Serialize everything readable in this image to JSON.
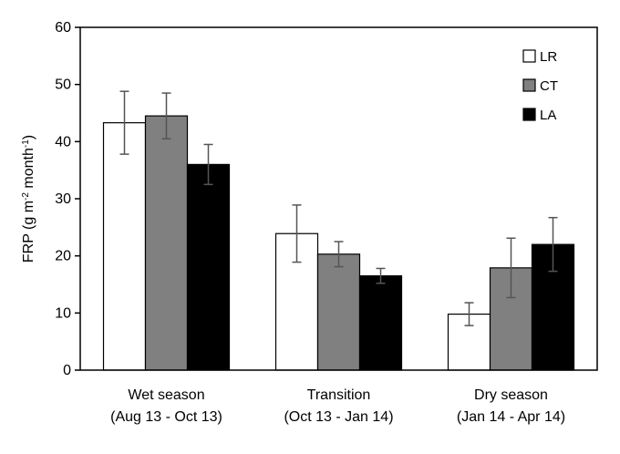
{
  "chart_data": {
    "type": "bar",
    "categories": [
      [
        "Wet season",
        "(Aug 13 - Oct 13)"
      ],
      [
        "Transition",
        "(Oct 13 - Jan 14)"
      ],
      [
        "Dry season",
        "(Jan 14 - Apr 14)"
      ]
    ],
    "series": [
      {
        "name": "LR",
        "color": "#ffffff",
        "values": [
          43.3,
          23.9,
          9.8
        ],
        "errors": [
          5.5,
          5.0,
          2.0
        ]
      },
      {
        "name": "CT",
        "color": "#808080",
        "values": [
          44.5,
          20.3,
          17.9
        ],
        "errors": [
          4.0,
          2.2,
          5.2
        ]
      },
      {
        "name": "LA",
        "color": "#000000",
        "values": [
          36.0,
          16.5,
          22.0
        ],
        "errors": [
          3.5,
          1.3,
          4.7
        ]
      }
    ],
    "ylabel": {
      "prefix": "FRP (g m",
      "sup1": "-2",
      "middle": " month",
      "sup2": "-1",
      "suffix": ")"
    },
    "ylim": [
      0,
      60
    ],
    "yticks": [
      0,
      10,
      20,
      30,
      40,
      50,
      60
    ],
    "grid": false,
    "legend_position": "top-right"
  }
}
